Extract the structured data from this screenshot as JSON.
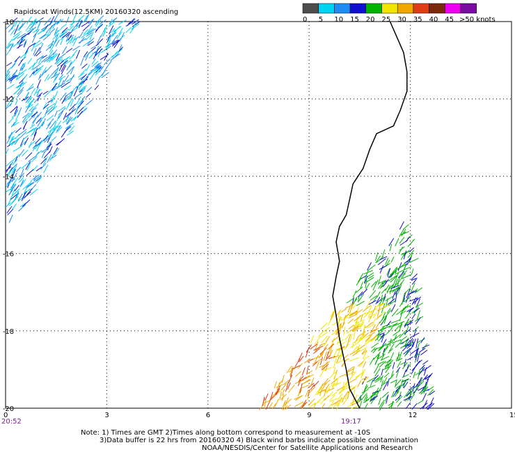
{
  "title": "Rapidscat Winds(12.5KM) 20160320 ascending",
  "legend": {
    "bins": [
      {
        "label": "0",
        "color": "#4d4d4d"
      },
      {
        "label": "5",
        "color": "#00d2f2"
      },
      {
        "label": "10",
        "color": "#1e8cf2"
      },
      {
        "label": "15",
        "color": "#1010d0"
      },
      {
        "label": "20",
        "color": "#00b400"
      },
      {
        "label": "25",
        "color": "#f0e600"
      },
      {
        "label": "30",
        "color": "#f0a800"
      },
      {
        "label": "35",
        "color": "#e03c14"
      },
      {
        "label": "40",
        "color": "#7a2a0a"
      },
      {
        "label": "45",
        "color": "#f000f0"
      },
      {
        "label": ">50 knots",
        "color": "#7a0aa0"
      }
    ]
  },
  "x_ticks": [
    "0",
    "3",
    "6",
    "9",
    "12",
    "15"
  ],
  "y_ticks": [
    "-10",
    "-12",
    "-14",
    "-16",
    "-18",
    "-20"
  ],
  "times": {
    "left": "20:52",
    "center": "19:17"
  },
  "notes": [
    "Note: 1) Times are GMT 2)Times along bottom correspond to measurement at -10S",
    "3)Data buffer is 22 hrs from 20160320 4) Black wind barbs indicate possible contamination",
    "NOAA/NESDIS/Center for Satellite Applications and Research"
  ],
  "map": {
    "lon_range": [
      0,
      15
    ],
    "lat_range": [
      -20,
      -10
    ],
    "coastline": [
      [
        11.4,
        -10.0
      ],
      [
        11.6,
        -10.4
      ],
      [
        11.8,
        -10.8
      ],
      [
        11.9,
        -11.3
      ],
      [
        11.9,
        -11.8
      ],
      [
        11.7,
        -12.3
      ],
      [
        11.5,
        -12.7
      ],
      [
        11.0,
        -12.9
      ],
      [
        10.8,
        -13.3
      ],
      [
        10.6,
        -13.8
      ],
      [
        10.3,
        -14.2
      ],
      [
        10.2,
        -14.6
      ],
      [
        10.1,
        -15.0
      ],
      [
        9.9,
        -15.3
      ],
      [
        9.8,
        -15.7
      ],
      [
        9.9,
        -16.2
      ],
      [
        9.8,
        -16.6
      ],
      [
        9.7,
        -17.1
      ],
      [
        9.8,
        -17.6
      ],
      [
        9.9,
        -18.2
      ],
      [
        10.0,
        -18.6
      ],
      [
        10.1,
        -19.0
      ],
      [
        10.2,
        -19.5
      ],
      [
        10.5,
        -20.0
      ]
    ]
  }
}
